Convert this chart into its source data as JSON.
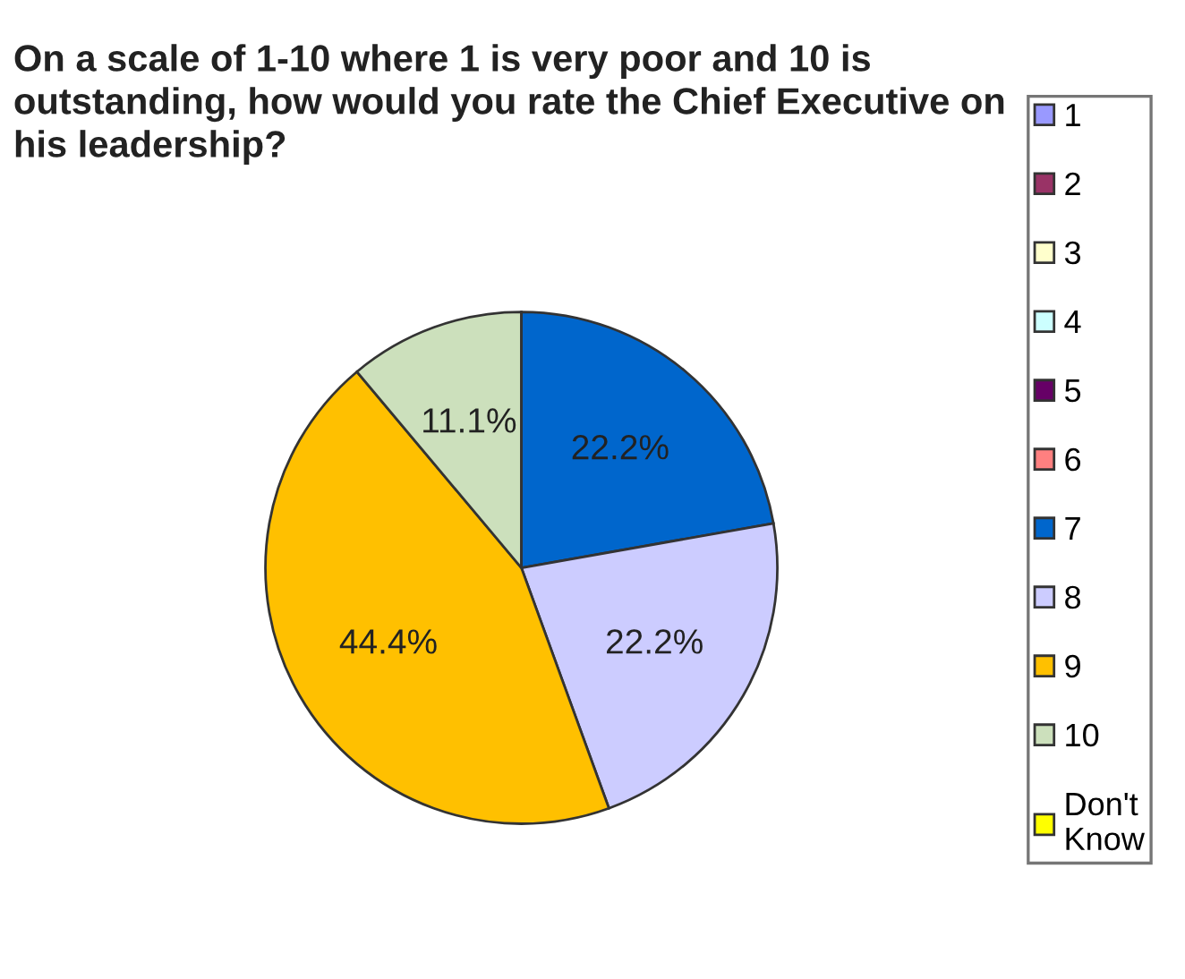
{
  "chart_data": {
    "type": "pie",
    "title": "On a scale of 1-10 where 1 is very poor and 10 is outstanding, how would you rate the Chief Executive on his leadership?",
    "categories": [
      "1",
      "2",
      "3",
      "4",
      "5",
      "6",
      "7",
      "8",
      "9",
      "10",
      "Don't Know"
    ],
    "values": [
      0,
      0,
      0,
      0,
      0,
      0,
      22.2,
      22.2,
      44.4,
      11.1,
      0
    ],
    "colors": [
      "#9999ff",
      "#993366",
      "#ffffcc",
      "#ccffff",
      "#660066",
      "#ff8080",
      "#0066cc",
      "#ccccff",
      "#ffc000",
      "#cce0bc",
      "#ffff00"
    ],
    "value_labels": [
      null,
      null,
      null,
      null,
      null,
      null,
      "22.2%",
      "22.2%",
      "44.4%",
      "11.1%",
      null
    ],
    "legend": "right"
  }
}
